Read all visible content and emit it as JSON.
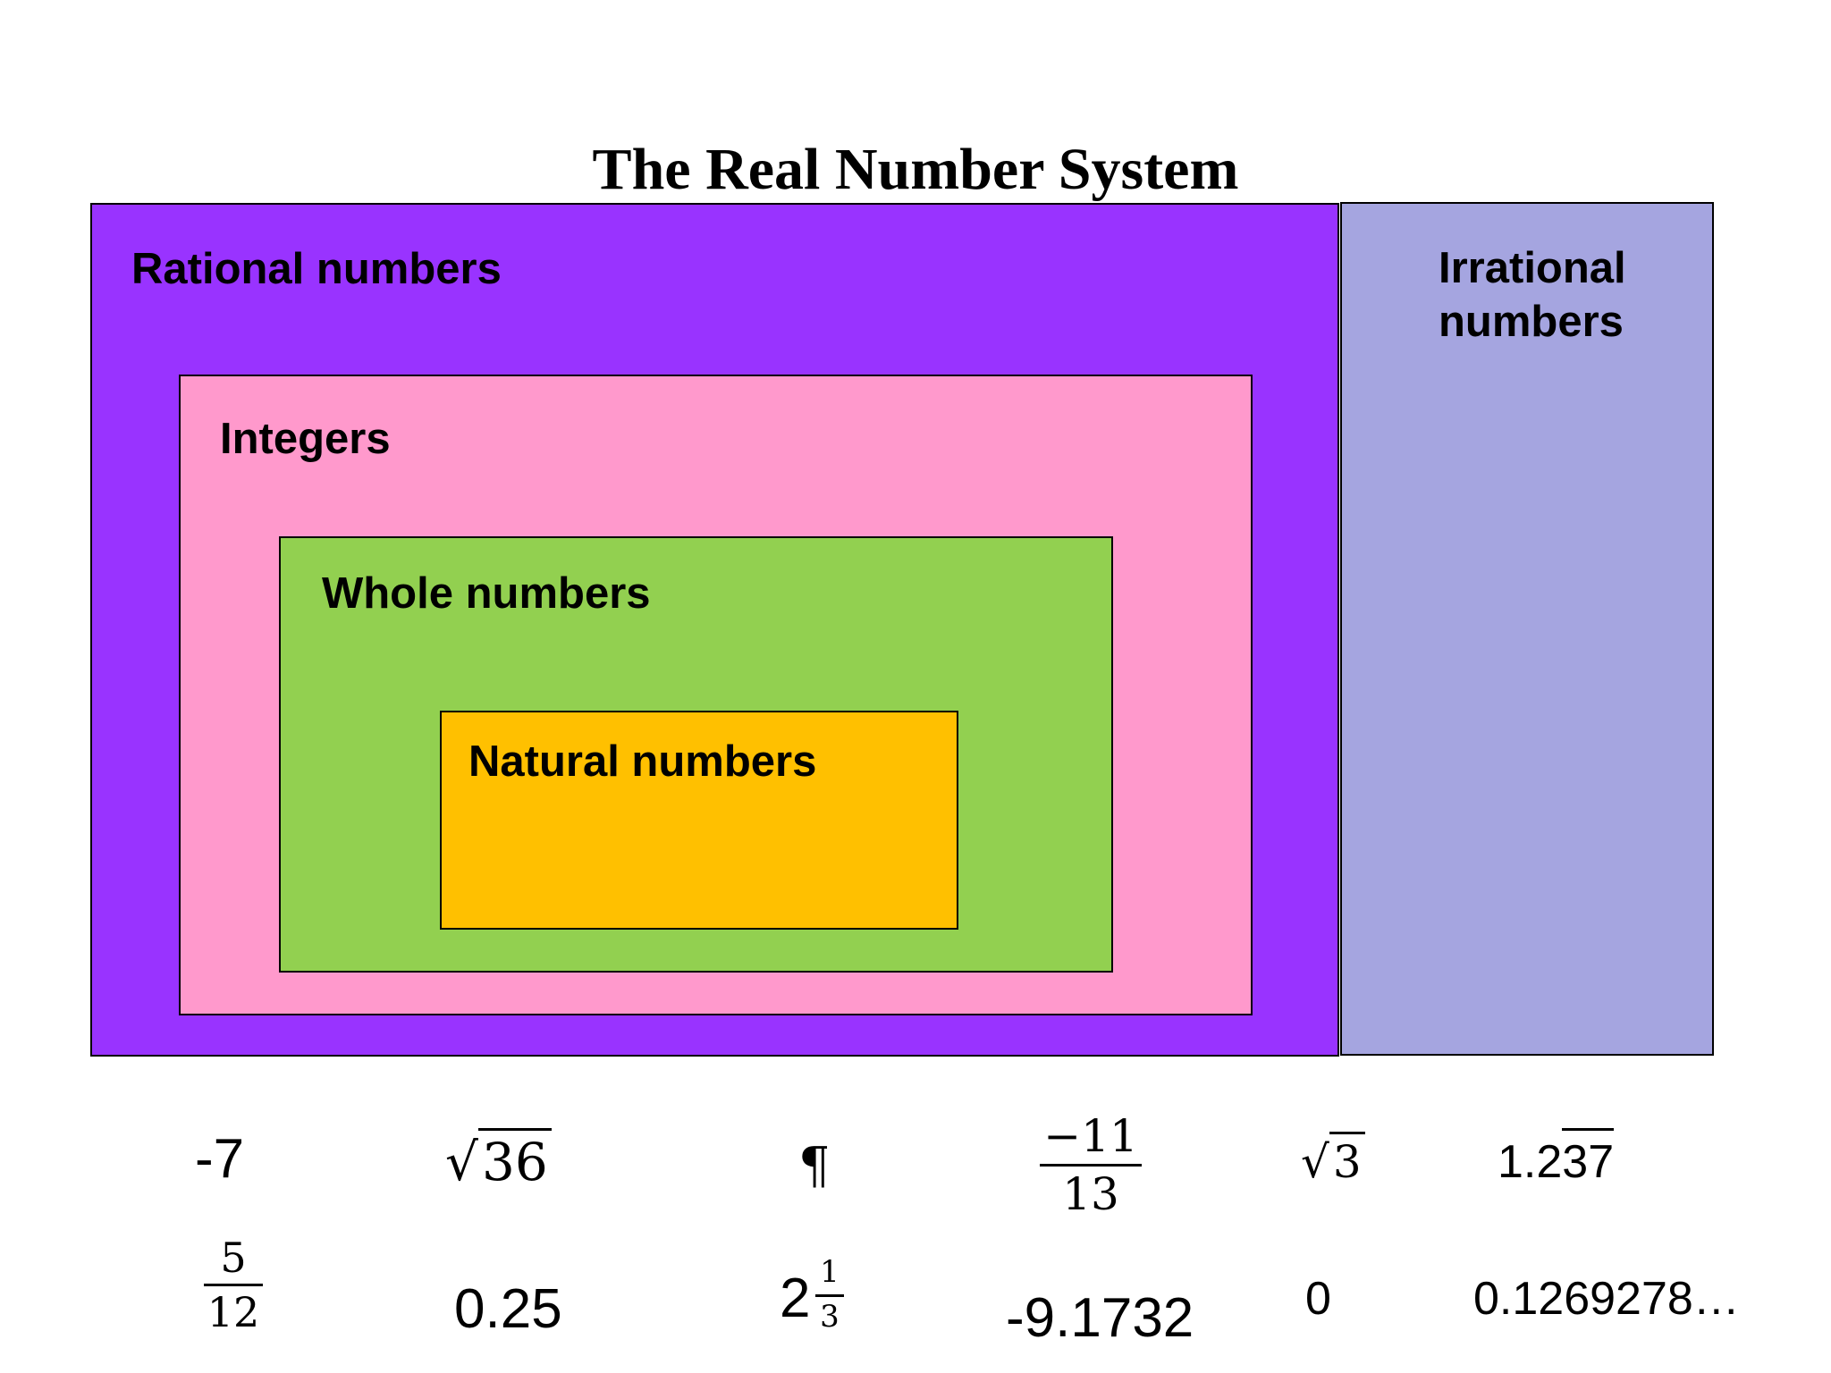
{
  "title": "The Real Number System",
  "sets": {
    "rational": "Rational numbers",
    "integers": "Integers",
    "whole": "Whole numbers",
    "natural": "Natural numbers",
    "irrational": "Irrational numbers"
  },
  "colors": {
    "rational": "#9933ff",
    "integers": "#ff99cc",
    "whole": "#92d050",
    "natural": "#ffc000",
    "irrational": "#a5a5e0"
  },
  "numbers": {
    "row1": {
      "neg_seven": "-7",
      "sqrt36_radicand": "36",
      "pilcrow": "¶",
      "frac_neg11_13_num": "−11",
      "frac_neg11_13_den": "13",
      "sqrt3_radicand": "3",
      "repeating_prefix": "1.2",
      "repeating_digits": "37"
    },
    "row2": {
      "frac_5_12_num": "5",
      "frac_5_12_den": "12",
      "quarter": "0.25",
      "mixed_whole": "2",
      "mixed_num": "1",
      "mixed_den": "3",
      "neg_decimal": "-9.1732",
      "zero": "0",
      "nonrepeating": "0.1269278…"
    }
  }
}
